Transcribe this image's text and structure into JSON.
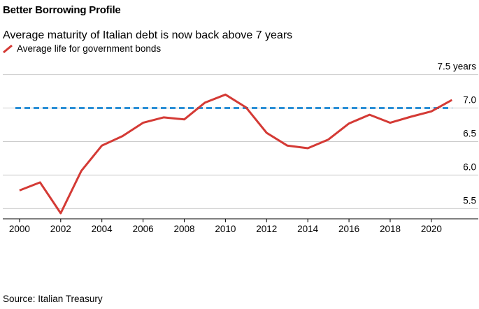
{
  "title": "Better Borrowing Profile",
  "subtitle": "Average maturity of Italian debt is now back above 7 years",
  "source": "Source: Italian Treasury",
  "colors": {
    "series": "#d43a35",
    "reference": "#2b8fd6",
    "grid": "#cccccc",
    "axis": "#000000"
  },
  "chart_data": {
    "type": "line",
    "series": [
      {
        "name": "Average life for government bonds",
        "x": [
          2000,
          2001,
          2002,
          2003,
          2004,
          2005,
          2006,
          2007,
          2008,
          2009,
          2010,
          2011,
          2012,
          2013,
          2014,
          2015,
          2016,
          2017,
          2018,
          2019,
          2020,
          2021
        ],
        "values": [
          5.77,
          5.89,
          5.43,
          6.06,
          6.44,
          6.58,
          6.78,
          6.86,
          6.83,
          7.08,
          7.2,
          7.01,
          6.63,
          6.44,
          6.4,
          6.53,
          6.77,
          6.9,
          6.78,
          6.87,
          6.95,
          7.12
        ]
      }
    ],
    "reference_line": {
      "value": 7.0,
      "style": "dashed"
    },
    "xlim": [
      1999.8,
      2021.6
    ],
    "ylim": [
      5.42,
      7.6
    ],
    "x_ticks": [
      2000,
      2002,
      2004,
      2006,
      2008,
      2010,
      2012,
      2014,
      2016,
      2018,
      2020
    ],
    "x_tick_labels": [
      "2000",
      "2002",
      "2004",
      "2006",
      "2008",
      "2010",
      "2012",
      "2014",
      "2016",
      "2018",
      "2020"
    ],
    "y_ticks": [
      5.5,
      6.0,
      6.5,
      7.0,
      7.5
    ],
    "y_tick_labels": [
      "5.5",
      "6.0",
      "6.5",
      "7.0",
      "7.5 years"
    ],
    "ylabel": "",
    "xlabel": "",
    "grid": "horizontal",
    "legend": "top-left"
  }
}
